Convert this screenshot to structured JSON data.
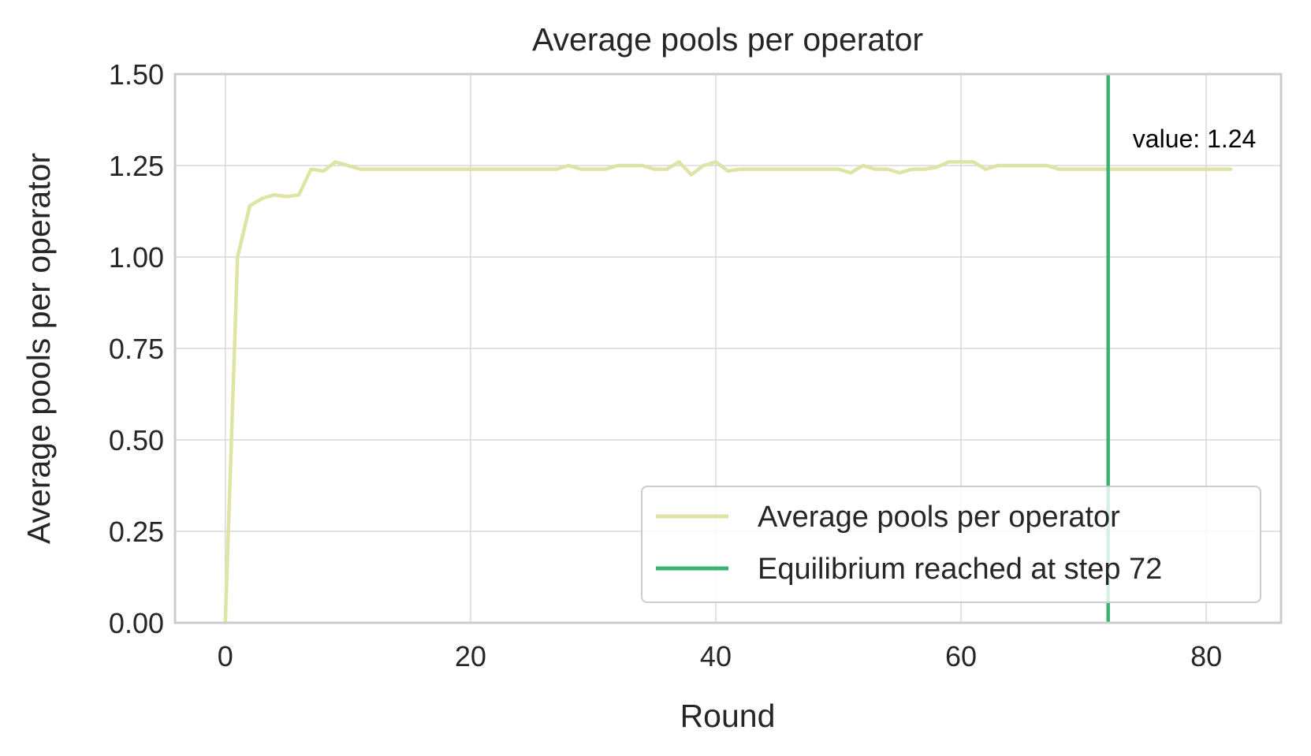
{
  "chart_data": {
    "type": "line",
    "title": "Average pools per operator",
    "xlabel": "Round",
    "ylabel": "Average pools per operator",
    "xlim": [
      -4.1,
      86.1
    ],
    "ylim": [
      0,
      1.5
    ],
    "xticks": [
      0,
      20,
      40,
      60,
      80
    ],
    "yticks": [
      0,
      0.25,
      0.5,
      0.75,
      1.0,
      1.25,
      1.5
    ],
    "xtick_labels": [
      "0",
      "20",
      "40",
      "60",
      "80"
    ],
    "ytick_labels": [
      "0.00",
      "0.25",
      "0.50",
      "0.75",
      "1.00",
      "1.25",
      "1.50"
    ],
    "grid": true,
    "legend_position": "lower-right",
    "series": [
      {
        "name": "Average pools per operator",
        "color": "#dfe3a4",
        "x": [
          0,
          1,
          2,
          3,
          4,
          5,
          6,
          7,
          8,
          9,
          10,
          11,
          12,
          13,
          14,
          15,
          16,
          17,
          18,
          19,
          20,
          21,
          22,
          23,
          24,
          25,
          26,
          27,
          28,
          29,
          30,
          31,
          32,
          33,
          34,
          35,
          36,
          37,
          38,
          39,
          40,
          41,
          42,
          43,
          44,
          45,
          46,
          47,
          48,
          49,
          50,
          51,
          52,
          53,
          54,
          55,
          56,
          57,
          58,
          59,
          60,
          61,
          62,
          63,
          64,
          65,
          66,
          67,
          68,
          69,
          70,
          71,
          72,
          73,
          74,
          75,
          76,
          77,
          78,
          79,
          80,
          81,
          82
        ],
        "y": [
          0.0,
          1.0,
          1.14,
          1.16,
          1.17,
          1.165,
          1.17,
          1.24,
          1.235,
          1.26,
          1.25,
          1.24,
          1.24,
          1.24,
          1.24,
          1.24,
          1.24,
          1.24,
          1.24,
          1.24,
          1.24,
          1.24,
          1.24,
          1.24,
          1.24,
          1.24,
          1.24,
          1.24,
          1.25,
          1.24,
          1.24,
          1.24,
          1.25,
          1.25,
          1.25,
          1.24,
          1.24,
          1.26,
          1.225,
          1.25,
          1.26,
          1.235,
          1.24,
          1.24,
          1.24,
          1.24,
          1.24,
          1.24,
          1.24,
          1.24,
          1.24,
          1.23,
          1.25,
          1.24,
          1.24,
          1.23,
          1.24,
          1.24,
          1.245,
          1.26,
          1.26,
          1.26,
          1.24,
          1.25,
          1.25,
          1.25,
          1.25,
          1.25,
          1.24,
          1.24,
          1.24,
          1.24,
          1.24,
          1.24,
          1.24,
          1.24,
          1.24,
          1.24,
          1.24,
          1.24,
          1.24,
          1.24,
          1.24
        ]
      }
    ],
    "vlines": [
      {
        "name": "Equilibrium reached at step 72",
        "x": 72,
        "color": "#3bb273"
      }
    ],
    "annotations": [
      {
        "text": "value: 1.24",
        "x": 74,
        "y": 1.3
      }
    ]
  }
}
